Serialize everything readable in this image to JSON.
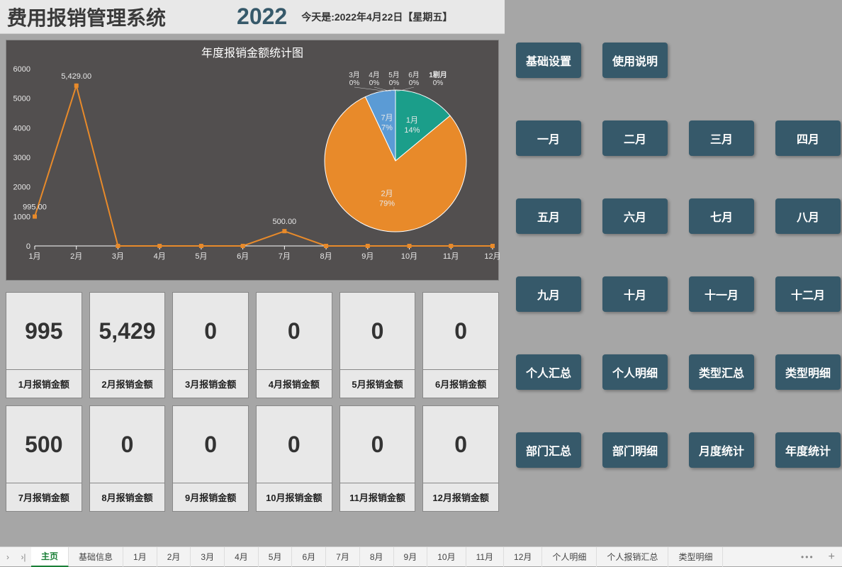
{
  "header": {
    "title": "费用报销管理系统",
    "year": "2022",
    "date_label": "今天是:2022年4月22日【星期五】"
  },
  "chart": {
    "title": "年度报销金额统计图",
    "background": "#524f4f",
    "line": {
      "type": "line",
      "categories": [
        "1月",
        "2月",
        "3月",
        "4月",
        "5月",
        "6月",
        "7月",
        "8月",
        "9月",
        "10月",
        "11月",
        "12月"
      ],
      "values": [
        995,
        5429,
        0,
        0,
        0,
        0,
        500,
        0,
        0,
        0,
        0,
        0
      ],
      "data_labels": [
        "995.00",
        "5,429.00",
        "",
        "",
        "",
        "",
        "500.00",
        "",
        "",
        "",
        "",
        ""
      ],
      "line_color": "#e88a2a",
      "marker_color": "#e88a2a",
      "marker_shape": "square",
      "marker_size": 6,
      "line_width": 2,
      "ylim": [
        0,
        6000
      ],
      "ytick_step": 1000,
      "axis_color": "#ffffff",
      "label_color": "#e8e8e8",
      "label_fontsize": 11,
      "grid": false
    },
    "pie": {
      "type": "pie",
      "slices": [
        {
          "label": "1月",
          "pct": 14,
          "color": "#1b9e8a"
        },
        {
          "label": "2月",
          "pct": 79,
          "color": "#e88a2a"
        },
        {
          "label": "3月",
          "pct": 0,
          "color": "#a6a6a6"
        },
        {
          "label": "4月",
          "pct": 0,
          "color": "#f2c200"
        },
        {
          "label": "5月",
          "pct": 0,
          "color": "#4472c4"
        },
        {
          "label": "6月",
          "pct": 0,
          "color": "#70ad47"
        },
        {
          "label": "7月",
          "pct": 7,
          "color": "#5b9bd5"
        },
        {
          "label": "8月",
          "pct": 0,
          "color": "#a6a6a6"
        },
        {
          "label": "9月",
          "pct": 0,
          "color": "#a6a6a6"
        },
        {
          "label": "10月",
          "pct": 0,
          "color": "#a6a6a6"
        },
        {
          "label": "11月",
          "pct": 0,
          "color": "#a6a6a6"
        },
        {
          "label": "12月",
          "pct": 0,
          "color": "#a6a6a6"
        }
      ],
      "label_color": "#e8e8e8",
      "label_fontsize": 11
    }
  },
  "cards": [
    {
      "value": "995",
      "label": "1月报销金额"
    },
    {
      "value": "5,429",
      "label": "2月报销金额"
    },
    {
      "value": "0",
      "label": "3月报销金额"
    },
    {
      "value": "0",
      "label": "4月报销金额"
    },
    {
      "value": "0",
      "label": "5月报销金额"
    },
    {
      "value": "0",
      "label": "6月报销金额"
    },
    {
      "value": "500",
      "label": "7月报销金额"
    },
    {
      "value": "0",
      "label": "8月报销金额"
    },
    {
      "value": "0",
      "label": "9月报销金额"
    },
    {
      "value": "0",
      "label": "10月报销金额"
    },
    {
      "value": "0",
      "label": "11月报销金额"
    },
    {
      "value": "0",
      "label": "12月报销金额"
    }
  ],
  "nav": {
    "top": [
      "基础设置",
      "使用说明"
    ],
    "months": [
      "一月",
      "二月",
      "三月",
      "四月",
      "五月",
      "六月",
      "七月",
      "八月",
      "九月",
      "十月",
      "十一月",
      "十二月"
    ],
    "bottom": [
      "个人汇总",
      "个人明细",
      "类型汇总",
      "类型明细",
      "部门汇总",
      "部门明细",
      "月度统计",
      "年度统计"
    ],
    "btn_bg": "#36596a",
    "btn_fg": "#ffffff"
  },
  "tabs": {
    "items": [
      "主页",
      "基础信息",
      "1月",
      "2月",
      "3月",
      "4月",
      "5月",
      "6月",
      "7月",
      "8月",
      "9月",
      "10月",
      "11月",
      "12月",
      "个人明细",
      "个人报销汇总",
      "类型明细"
    ],
    "active": "主页"
  }
}
